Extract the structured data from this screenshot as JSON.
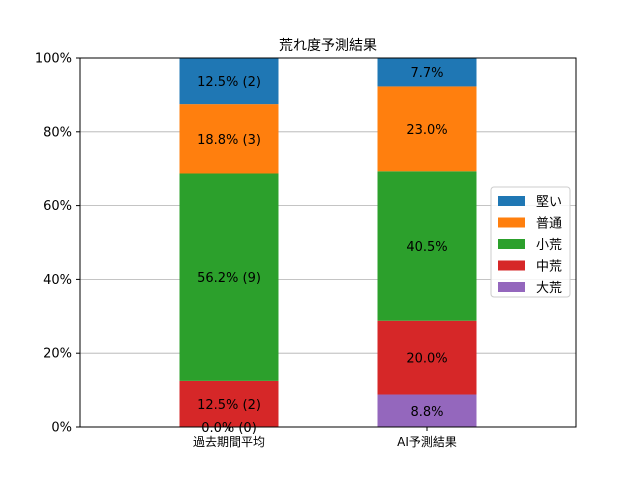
{
  "chart_data": {
    "type": "bar",
    "stacked": true,
    "title": "荒れ度予測結果",
    "xlabel": "",
    "ylabel": "",
    "ylim": [
      0,
      100
    ],
    "yticks": [
      "0%",
      "20%",
      "40%",
      "60%",
      "80%",
      "100%"
    ],
    "grid": "horizontal",
    "legend_position": "right",
    "categories": [
      "過去期間平均",
      "AI予測結果"
    ],
    "stack_order": [
      "大荒",
      "中荒",
      "小荒",
      "普通",
      "堅い"
    ],
    "series": [
      {
        "name": "堅い",
        "color": "#1f77b4",
        "values": [
          12.5,
          7.7
        ],
        "labels": [
          "12.5% (2)",
          "7.7%"
        ]
      },
      {
        "name": "普通",
        "color": "#ff7f0e",
        "values": [
          18.8,
          23.0
        ],
        "labels": [
          "18.8% (3)",
          "23.0%"
        ]
      },
      {
        "name": "小荒",
        "color": "#2ca02c",
        "values": [
          56.2,
          40.5
        ],
        "labels": [
          "56.2% (9)",
          "40.5%"
        ]
      },
      {
        "name": "中荒",
        "color": "#d62728",
        "values": [
          12.5,
          20.0
        ],
        "labels": [
          "12.5% (2)",
          "20.0%"
        ]
      },
      {
        "name": "大荒",
        "color": "#9467bd",
        "values": [
          0.0,
          8.8
        ],
        "labels": [
          "0.0% (0)",
          "8.8%"
        ]
      }
    ]
  }
}
